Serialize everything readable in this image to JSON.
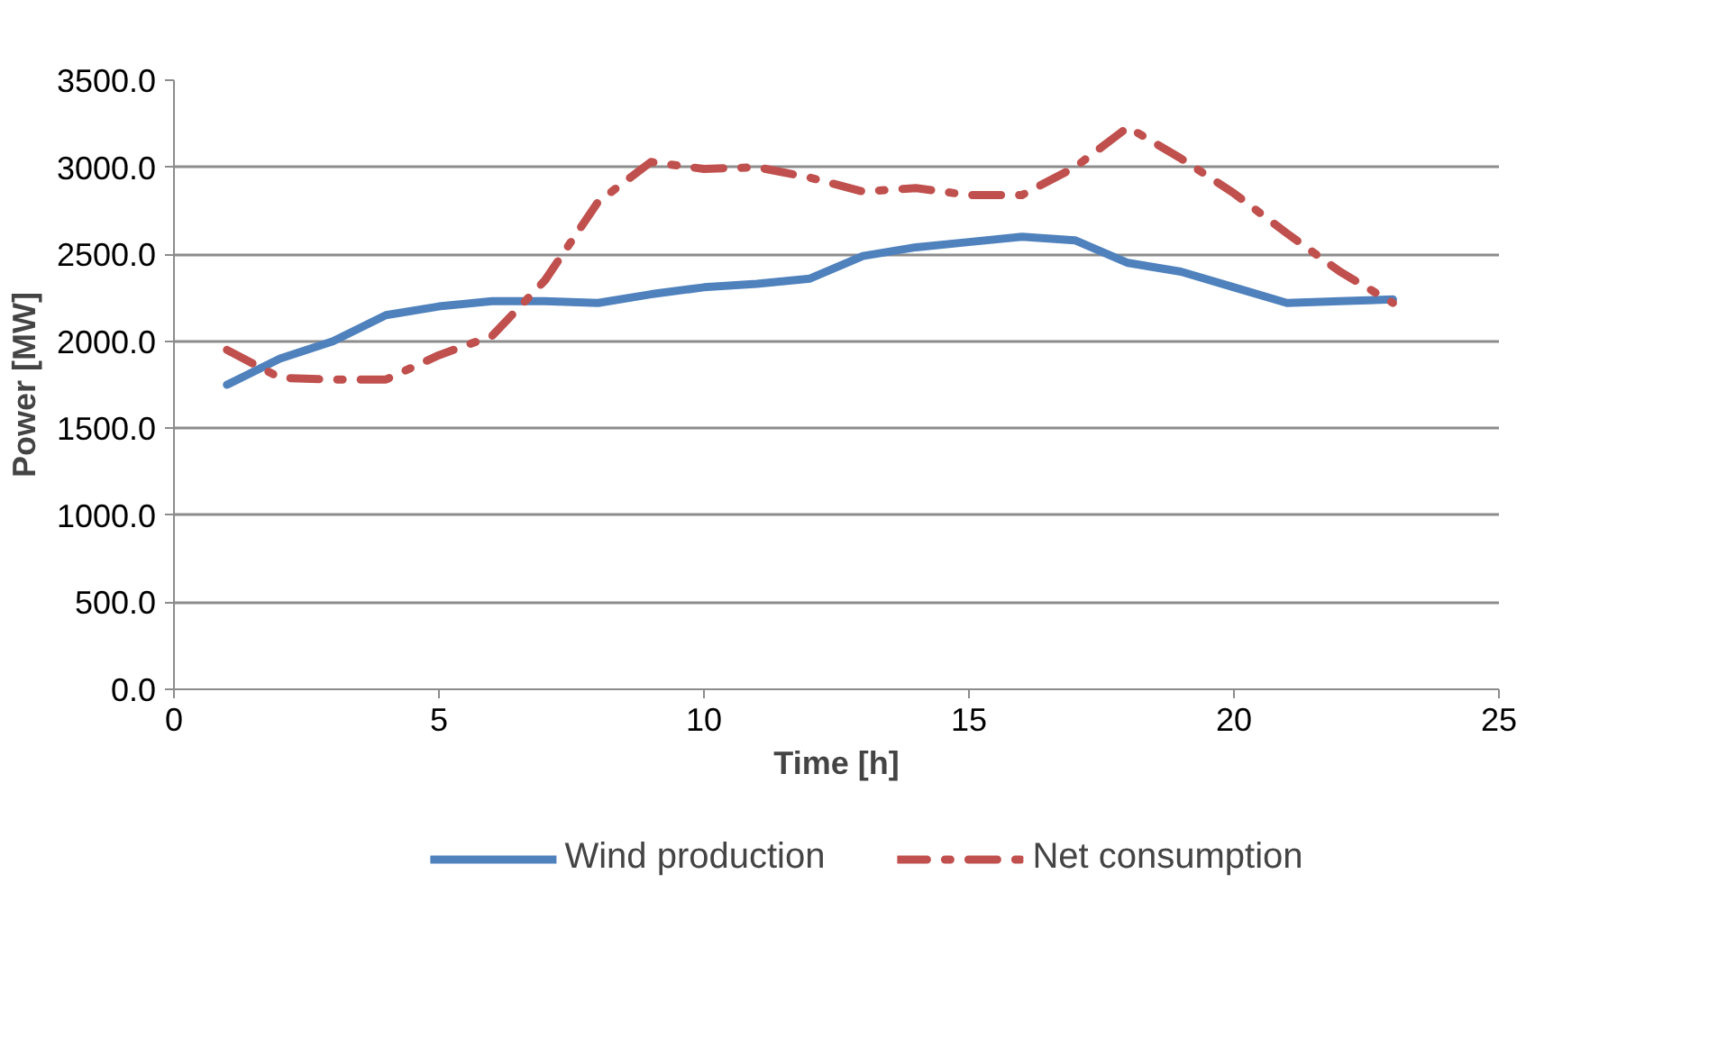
{
  "chart_data": {
    "type": "line",
    "xlabel": "Time [h]",
    "ylabel": "Power [MW]",
    "x": [
      1,
      2,
      3,
      4,
      5,
      6,
      7,
      8,
      9,
      10,
      11,
      12,
      13,
      14,
      15,
      16,
      17,
      18,
      19,
      20,
      21,
      22,
      23
    ],
    "series": [
      {
        "name": "Wind production",
        "color": "#4f81bd",
        "line_style": "solid",
        "values": [
          1750,
          1900,
          2000,
          2150,
          2200,
          2230,
          2230,
          2220,
          2270,
          2310,
          2330,
          2360,
          2490,
          2540,
          2570,
          2600,
          2580,
          2450,
          2400,
          2310,
          2220,
          2230,
          2240
        ]
      },
      {
        "name": "Net consumption",
        "color": "#c0504d",
        "line_style": "dashdot",
        "values": [
          1950,
          1790,
          1780,
          1780,
          1920,
          2030,
          2350,
          2800,
          3030,
          2990,
          3000,
          2940,
          2860,
          2880,
          2840,
          2840,
          3000,
          3230,
          3050,
          2850,
          2620,
          2400,
          2220
        ]
      }
    ],
    "xlim": [
      0,
      25
    ],
    "xticks": [
      0,
      5,
      10,
      15,
      20,
      25
    ],
    "ylim": [
      0,
      3500
    ],
    "yticks": [
      {
        "value": 0,
        "label": "0.0"
      },
      {
        "value": 500,
        "label": "500.0"
      },
      {
        "value": 1000,
        "label": "1000.0"
      },
      {
        "value": 1500,
        "label": "1500.0"
      },
      {
        "value": 2000,
        "label": "2000.0"
      },
      {
        "value": 2500,
        "label": "2500.0"
      },
      {
        "value": 3000,
        "label": "3000.0"
      },
      {
        "value": 3500,
        "label": "3500.0"
      }
    ],
    "grid": "y",
    "legend": "bottom",
    "marker": "none"
  }
}
